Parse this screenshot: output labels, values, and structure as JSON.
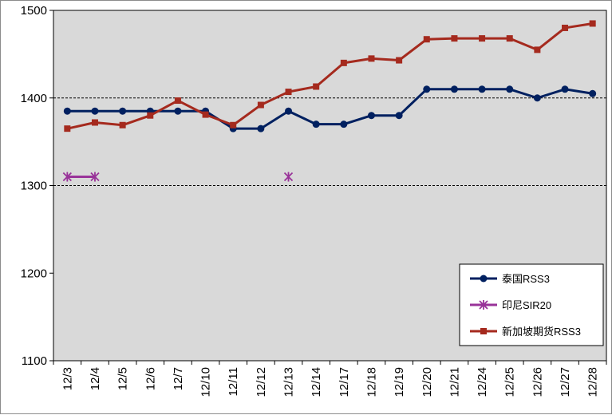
{
  "chart_data": {
    "type": "line",
    "title": "",
    "xlabel": "",
    "ylabel": "",
    "categories": [
      "12/3",
      "12/4",
      "12/5",
      "12/6",
      "12/7",
      "12/10",
      "12/11",
      "12/12",
      "12/13",
      "12/14",
      "12/17",
      "12/18",
      "12/19",
      "12/20",
      "12/21",
      "12/24",
      "12/25",
      "12/26",
      "12/27",
      "12/28"
    ],
    "ylim": [
      1100,
      1500
    ],
    "yticks": [
      1100,
      1200,
      1300,
      1400,
      1500
    ],
    "grid": "horizontal dashed at 1300 and 1400",
    "legend_position": "bottom-right",
    "series": [
      {
        "name": "泰国RSS3",
        "color": "#002060",
        "marker": "circle",
        "values": [
          1385,
          1385,
          1385,
          1385,
          1385,
          1385,
          1365,
          1365,
          1385,
          1370,
          1370,
          1380,
          1380,
          1410,
          1410,
          1410,
          1410,
          1400,
          1410,
          1405
        ]
      },
      {
        "name": "印尼SIR20",
        "color": "#993399",
        "marker": "asterisk",
        "values": [
          1310,
          1310,
          null,
          null,
          null,
          null,
          null,
          null,
          1310,
          null,
          null,
          null,
          null,
          null,
          null,
          null,
          null,
          null,
          null,
          null
        ]
      },
      {
        "name": "新加坡期货RSS3",
        "color": "#a52a1e",
        "marker": "square",
        "values": [
          1365,
          1372,
          1369,
          1380,
          1397,
          1381,
          1369,
          1392,
          1407,
          1413,
          1440,
          1445,
          1443,
          1467,
          1468,
          1468,
          1468,
          1455,
          1480,
          1485
        ]
      }
    ]
  }
}
